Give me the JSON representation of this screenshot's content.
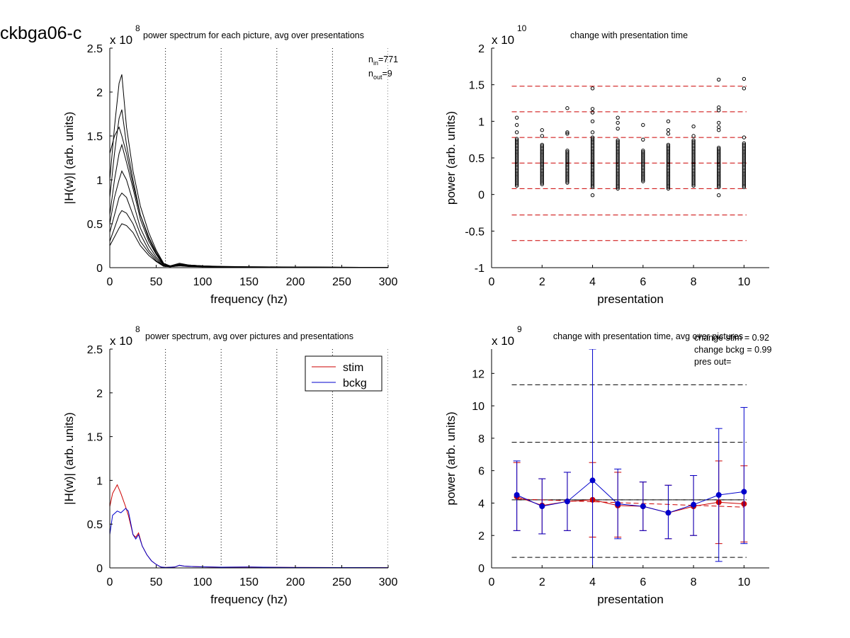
{
  "figure_label": "ckbga06-c",
  "chart_data": [
    {
      "type": "line",
      "title": "power spectrum for each picture, avg over presentations",
      "xlabel": "frequency (hz)",
      "ylabel": "|H(w)| (arb. units)",
      "y_exponent": "x 10^8",
      "xlim": [
        0,
        300
      ],
      "ylim": [
        0,
        2.5
      ],
      "xticks": [
        0,
        50,
        100,
        150,
        200,
        250,
        300
      ],
      "yticks": [
        0,
        0.5,
        1,
        1.5,
        2,
        2.5
      ],
      "vlines": [
        60,
        120,
        180,
        240,
        300
      ],
      "annotations": [
        "n_in=771",
        "n_out=9"
      ],
      "series_count_note": "many overlapping black traces",
      "series": [
        {
          "x": [
            0,
            5,
            10,
            13,
            18,
            25,
            33,
            42,
            50,
            58,
            65,
            75,
            85,
            100,
            120,
            150,
            200,
            250,
            300
          ],
          "values": [
            1.0,
            1.6,
            2.1,
            2.2,
            1.6,
            1.1,
            0.7,
            0.4,
            0.2,
            0.05,
            0.02,
            0.05,
            0.03,
            0.02,
            0.015,
            0.01,
            0.008,
            0.005,
            0.003
          ]
        },
        {
          "x": [
            0,
            5,
            10,
            13,
            18,
            25,
            33,
            42,
            50,
            58,
            65,
            75,
            85,
            100,
            120,
            150,
            200,
            250,
            300
          ],
          "values": [
            0.8,
            1.3,
            1.7,
            1.8,
            1.4,
            1.0,
            0.6,
            0.35,
            0.18,
            0.04,
            0.02,
            0.04,
            0.03,
            0.02,
            0.012,
            0.01,
            0.007,
            0.005,
            0.003
          ]
        },
        {
          "x": [
            0,
            5,
            10,
            13,
            18,
            25,
            33,
            42,
            50,
            58,
            65,
            75,
            85,
            100,
            120,
            150,
            200,
            250,
            300
          ],
          "values": [
            0.6,
            1.0,
            1.3,
            1.4,
            1.2,
            0.9,
            0.55,
            0.3,
            0.15,
            0.03,
            0.015,
            0.035,
            0.025,
            0.015,
            0.01,
            0.008,
            0.006,
            0.004,
            0.002
          ]
        },
        {
          "x": [
            0,
            5,
            10,
            13,
            18,
            25,
            33,
            42,
            50,
            58,
            65,
            75,
            85,
            100,
            120,
            150,
            200,
            250,
            300
          ],
          "values": [
            0.5,
            0.8,
            1.0,
            1.1,
            1.0,
            0.75,
            0.45,
            0.25,
            0.12,
            0.03,
            0.015,
            0.03,
            0.02,
            0.015,
            0.01,
            0.007,
            0.005,
            0.004,
            0.002
          ]
        },
        {
          "x": [
            0,
            5,
            10,
            13,
            18,
            25,
            33,
            42,
            50,
            58,
            65,
            75,
            85,
            100,
            120,
            150,
            200,
            250,
            300
          ],
          "values": [
            0.4,
            0.6,
            0.8,
            0.85,
            0.8,
            0.6,
            0.38,
            0.2,
            0.1,
            0.02,
            0.01,
            0.025,
            0.02,
            0.012,
            0.008,
            0.006,
            0.004,
            0.003,
            0.002
          ]
        },
        {
          "x": [
            0,
            5,
            10,
            13,
            18,
            25,
            33,
            42,
            50,
            58,
            65,
            75,
            85,
            100,
            120,
            150,
            200,
            250,
            300
          ],
          "values": [
            0.3,
            0.45,
            0.6,
            0.65,
            0.62,
            0.5,
            0.3,
            0.17,
            0.08,
            0.02,
            0.01,
            0.02,
            0.015,
            0.01,
            0.007,
            0.005,
            0.004,
            0.003,
            0.002
          ]
        },
        {
          "x": [
            0,
            5,
            10,
            13,
            18,
            25,
            33,
            42,
            50,
            58,
            65,
            75,
            85,
            100,
            120,
            150,
            200,
            250,
            300
          ],
          "values": [
            1.3,
            1.5,
            1.6,
            1.5,
            1.3,
            0.95,
            0.6,
            0.33,
            0.16,
            0.04,
            0.02,
            0.04,
            0.03,
            0.02,
            0.012,
            0.009,
            0.007,
            0.004,
            0.003
          ]
        },
        {
          "x": [
            0,
            5,
            10,
            13,
            18,
            25,
            33,
            42,
            50,
            58,
            65,
            75,
            85,
            100,
            120,
            150,
            200,
            250,
            300
          ],
          "values": [
            0.25,
            0.35,
            0.45,
            0.5,
            0.48,
            0.4,
            0.25,
            0.14,
            0.07,
            0.015,
            0.01,
            0.02,
            0.012,
            0.01,
            0.006,
            0.005,
            0.003,
            0.002,
            0.001
          ]
        }
      ]
    },
    {
      "type": "scatter",
      "title": "change with presentation time",
      "xlabel": "presentation",
      "ylabel": "power (arb. units)",
      "y_exponent": "x 10^10",
      "xlim": [
        0,
        11
      ],
      "ylim": [
        -1,
        2
      ],
      "xticks": [
        0,
        2,
        4,
        6,
        8,
        10
      ],
      "yticks": [
        -1,
        -0.5,
        0,
        0.5,
        1,
        1.5,
        2
      ],
      "hlines": [
        1.48,
        1.13,
        0.78,
        0.43,
        0.08,
        -0.28,
        -0.63
      ],
      "hline_color": "#cc0000",
      "x_groups": [
        1,
        2,
        3,
        4,
        5,
        6,
        7,
        8,
        9,
        10
      ],
      "dense_range": [
        [
          0.12,
          0.78
        ],
        [
          0.14,
          0.7
        ],
        [
          0.16,
          0.62
        ],
        [
          0.1,
          0.8
        ],
        [
          0.1,
          0.75
        ],
        [
          0.18,
          0.62
        ],
        [
          0.1,
          0.7
        ],
        [
          0.12,
          0.75
        ],
        [
          0.1,
          0.65
        ],
        [
          0.1,
          0.72
        ]
      ],
      "outliers": [
        [
          1.05,
          0.95,
          0.85
        ],
        [
          0.88,
          0.8
        ],
        [
          1.18,
          0.85,
          0.83
        ],
        [
          1.45,
          1.17,
          1.12,
          1.0,
          0.85,
          -0.01
        ],
        [
          1.05,
          0.98,
          0.9,
          0.08
        ],
        [
          0.95,
          0.75
        ],
        [
          1.0,
          0.88,
          0.83,
          0.08
        ],
        [
          0.93,
          0.8
        ],
        [
          1.57,
          1.19,
          1.15,
          0.98,
          0.92,
          0.88,
          -0.01
        ],
        [
          1.58,
          1.45,
          0.78
        ]
      ]
    },
    {
      "type": "line",
      "title": "power spectrum, avg over pictures and presentations",
      "xlabel": "frequency (hz)",
      "ylabel": "|H(w)| (arb. units)",
      "y_exponent": "x 10^8",
      "xlim": [
        0,
        300
      ],
      "ylim": [
        0,
        2.5
      ],
      "xticks": [
        0,
        50,
        100,
        150,
        200,
        250,
        300
      ],
      "yticks": [
        0,
        0.5,
        1,
        1.5,
        2,
        2.5
      ],
      "vlines": [
        60,
        120,
        180,
        240,
        300
      ],
      "legend_position": "top-right",
      "series": [
        {
          "name": "stim",
          "color": "#cc0000",
          "x": [
            0,
            3,
            8,
            12,
            17,
            20,
            25,
            28,
            31,
            35,
            40,
            45,
            50,
            55,
            60,
            70,
            75,
            80,
            90,
            100,
            120,
            150,
            200,
            250,
            300
          ],
          "values": [
            0.7,
            0.85,
            0.95,
            0.85,
            0.7,
            0.6,
            0.38,
            0.35,
            0.4,
            0.25,
            0.15,
            0.08,
            0.04,
            0.01,
            0.005,
            0.01,
            0.03,
            0.02,
            0.015,
            0.012,
            0.008,
            0.01,
            0.005,
            0.004,
            0.003
          ]
        },
        {
          "name": "bckg",
          "color": "#0000cc",
          "x": [
            0,
            3,
            8,
            12,
            17,
            20,
            25,
            28,
            31,
            35,
            40,
            45,
            50,
            55,
            60,
            70,
            75,
            80,
            90,
            100,
            120,
            150,
            200,
            250,
            300
          ],
          "values": [
            0.38,
            0.6,
            0.65,
            0.63,
            0.68,
            0.65,
            0.38,
            0.33,
            0.38,
            0.25,
            0.15,
            0.08,
            0.04,
            0.01,
            0.005,
            0.01,
            0.03,
            0.02,
            0.015,
            0.012,
            0.008,
            0.01,
            0.005,
            0.004,
            0.003
          ]
        }
      ]
    },
    {
      "type": "line",
      "title": "change with presentation time, avg over pictures",
      "xlabel": "presentation",
      "ylabel": "power (arb. units)",
      "y_exponent": "x 10^9",
      "xlim": [
        0,
        11
      ],
      "ylim": [
        0,
        13.5
      ],
      "xticks": [
        0,
        2,
        4,
        6,
        8,
        10
      ],
      "yticks": [
        0,
        2,
        4,
        6,
        8,
        10,
        12
      ],
      "annotations": [
        "change stim = 0.92",
        "change bckg = 0.99",
        "pres out="
      ],
      "hlines": [
        11.3,
        7.75,
        4.2,
        0.65
      ],
      "hline_color": "#000000",
      "x": [
        1,
        2,
        3,
        4,
        5,
        6,
        7,
        8,
        9,
        10
      ],
      "series": [
        {
          "name": "stim",
          "color": "#cc0000",
          "values": [
            4.4,
            3.85,
            4.1,
            4.2,
            3.85,
            3.8,
            3.4,
            3.8,
            4.05,
            3.95
          ],
          "err_low": [
            2.3,
            2.1,
            2.3,
            1.9,
            1.9,
            2.3,
            1.8,
            2.0,
            1.5,
            1.6
          ],
          "err_high": [
            6.5,
            5.5,
            5.9,
            6.5,
            5.9,
            5.3,
            5.1,
            5.7,
            6.6,
            6.3
          ]
        },
        {
          "name": "bckg",
          "color": "#0000cc",
          "values": [
            4.5,
            3.8,
            4.1,
            5.4,
            3.95,
            3.8,
            3.4,
            3.9,
            4.5,
            4.7
          ],
          "err_low": [
            2.3,
            2.1,
            2.3,
            0,
            1.8,
            2.3,
            1.8,
            2.0,
            0.4,
            1.5
          ],
          "err_high": [
            6.6,
            5.5,
            5.9,
            13.5,
            6.1,
            5.3,
            5.1,
            5.7,
            8.6,
            9.9
          ]
        }
      ],
      "trend_lines": [
        {
          "color": "#000000",
          "from": [
            1,
            4.2
          ],
          "to": [
            10,
            4.2
          ]
        },
        {
          "color": "#cc0000",
          "from": [
            1,
            4.25
          ],
          "to": [
            10,
            3.75
          ]
        }
      ]
    }
  ]
}
